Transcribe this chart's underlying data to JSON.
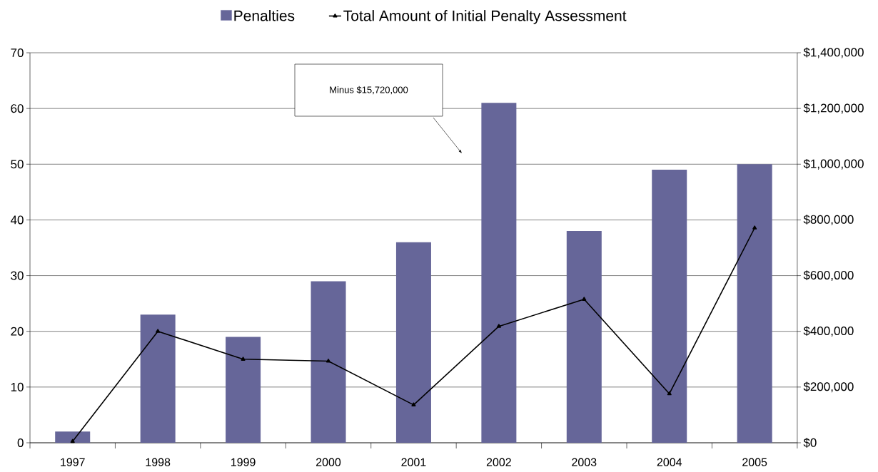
{
  "chart_data": {
    "type": "bar",
    "categories": [
      "1997",
      "1998",
      "1999",
      "2000",
      "2001",
      "2002",
      "2003",
      "2004",
      "2005"
    ],
    "series": [
      {
        "name": "Penalties",
        "color": "#666699",
        "values": [
          2,
          23,
          19,
          29,
          36,
          61,
          38,
          49,
          50
        ]
      },
      {
        "name": "Total Amount of Initial Penalty Assessment",
        "type": "line",
        "axis": "y2",
        "color": "#000000",
        "marker": "triangle",
        "values": [
          5000,
          400000,
          300000,
          293000,
          136000,
          418000,
          515000,
          176000,
          771000
        ]
      }
    ],
    "ylim": [
      0,
      70
    ],
    "yticks": [
      0,
      10,
      20,
      30,
      40,
      50,
      60,
      70
    ],
    "y2lim": [
      0,
      1400000
    ],
    "y2ticks": [
      {
        "value": 0,
        "label": "$0"
      },
      {
        "value": 200000,
        "label": "$200,000"
      },
      {
        "value": 400000,
        "label": "$400,000"
      },
      {
        "value": 600000,
        "label": "$600,000"
      },
      {
        "value": 800000,
        "label": "$800,000"
      },
      {
        "value": 1000000,
        "label": "$1,000,000"
      },
      {
        "value": 1200000,
        "label": "$1,200,000"
      },
      {
        "value": 1400000,
        "label": "$1,400,000"
      }
    ],
    "grid": "y",
    "legend": "top",
    "annotations": [
      "Minus $15,720,000"
    ]
  }
}
